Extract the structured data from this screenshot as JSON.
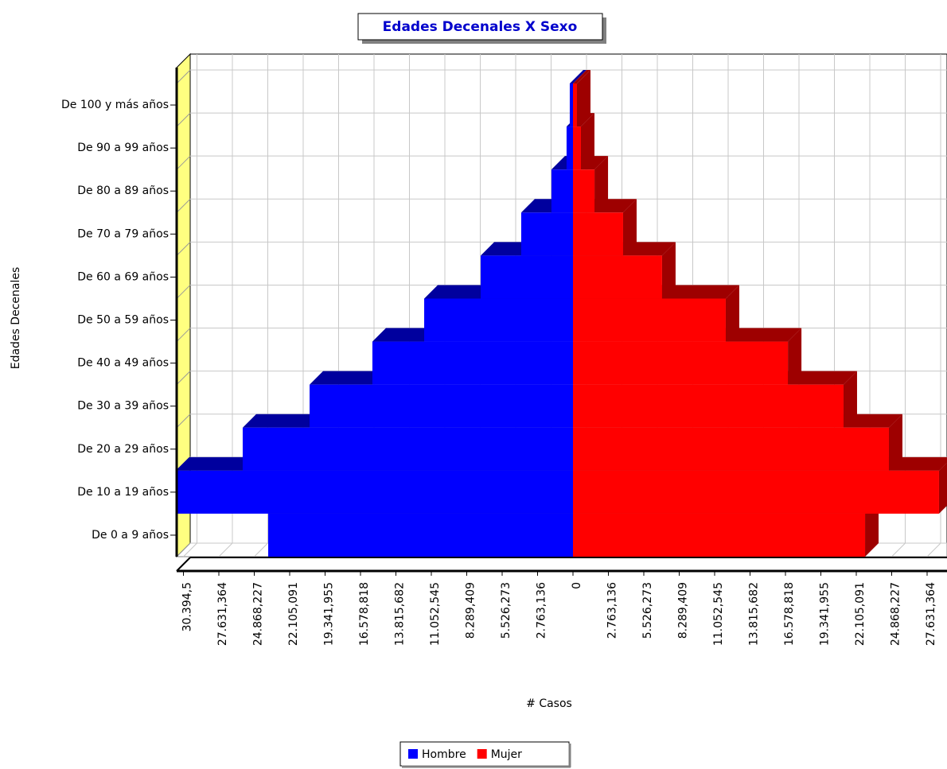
{
  "chart_data": {
    "type": "bar",
    "orientation": "horizontal",
    "title": "Edades Decenales X Sexo",
    "x_label": "# Casos",
    "y_label": "Edades Decenales",
    "categories": [
      "De 0 a 9 años",
      "De 10 a 19 años",
      "De 20 a 29 años",
      "De 30 a 39 años",
      "De 40 a 49 años",
      "De 50 a 59 años",
      "De 60 a 69 años",
      "De 70 a 79 años",
      "De 80 a 89 años",
      "De 90 a 99 años",
      "De 100 y más años"
    ],
    "series": [
      {
        "name": "Hombre",
        "color": "#0000ff",
        "values": [
          -23780,
          -31000,
          -25770,
          -20550,
          -15650,
          -11610,
          -7200,
          -4040,
          -1680,
          -500,
          -250
        ]
      },
      {
        "name": "Mujer",
        "color": "#ff0000",
        "values": [
          22790,
          28560,
          24650,
          21110,
          16770,
          11920,
          6950,
          3910,
          1680,
          620,
          310
        ]
      }
    ],
    "xlim": [
      -30922,
      29059
    ],
    "xticks": [
      {
        "value": -30394.5,
        "label": "30.394,5"
      },
      {
        "value": -27631.364,
        "label": "27.631,364"
      },
      {
        "value": -24868.227,
        "label": "24.868,227"
      },
      {
        "value": -22105.091,
        "label": "22.105,091"
      },
      {
        "value": -19341.955,
        "label": "19.341,955"
      },
      {
        "value": -16578.818,
        "label": "16.578,818"
      },
      {
        "value": -13815.682,
        "label": "13.815,682"
      },
      {
        "value": -11052.545,
        "label": "11.052,545"
      },
      {
        "value": -8289.409,
        "label": "8.289,409"
      },
      {
        "value": -5526.273,
        "label": "5.526,273"
      },
      {
        "value": -2763.136,
        "label": "2.763,136"
      },
      0,
      {
        "value": 2763.136,
        "label": "2.763,136"
      },
      {
        "value": 5526.273,
        "label": "5.526,273"
      },
      {
        "value": 8289.409,
        "label": "8.289,409"
      },
      {
        "value": 11052.545,
        "label": "11.052,545"
      },
      {
        "value": 13815.682,
        "label": "13.815,682"
      },
      {
        "value": 16578.818,
        "label": "16.578,818"
      },
      {
        "value": 19341.955,
        "label": "19.341,955"
      },
      {
        "value": 22105.091,
        "label": "22.105,091"
      },
      {
        "value": 24868.227,
        "label": "24.868,227"
      },
      {
        "value": 27631.364,
        "label": "27.631,364"
      }
    ],
    "grid": true,
    "legend": "bottom"
  }
}
